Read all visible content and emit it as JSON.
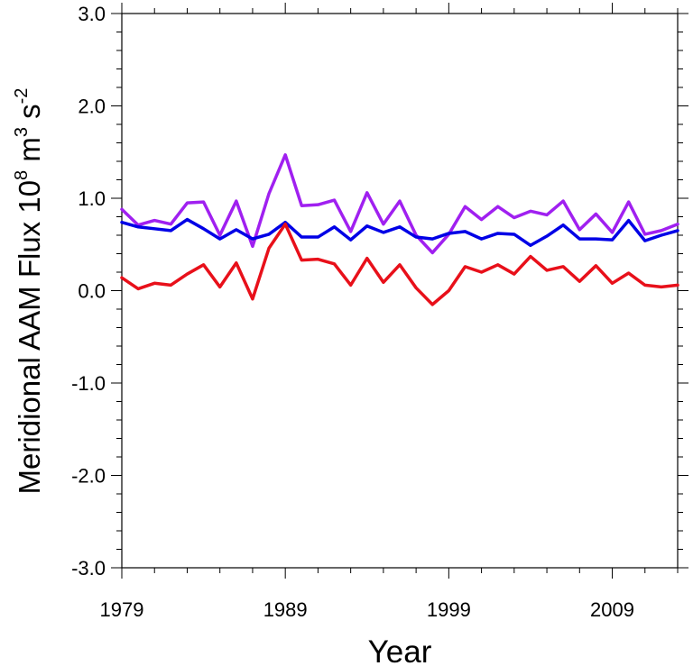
{
  "chart_data": {
    "type": "line",
    "xlabel": "Year",
    "ylabel_main": "Meridional AAM Flux 10",
    "ylabel_exp1": "8",
    "ylabel_mid": " m",
    "ylabel_exp2": "3",
    "ylabel_mid2": " s",
    "ylabel_exp3": "-2",
    "xlim": [
      1979,
      2013
    ],
    "ylim": [
      -3.0,
      3.0
    ],
    "x_major_ticks": [
      1979,
      1989,
      1999,
      2009
    ],
    "x_tick_labels": [
      "1979",
      "1989",
      "1999",
      "2009"
    ],
    "y_major_ticks": [
      -3.0,
      -2.0,
      -1.0,
      0.0,
      1.0,
      2.0,
      3.0
    ],
    "y_tick_labels": [
      "-3.0",
      "-2.0",
      "-1.0",
      "0.0",
      "1.0",
      "2.0",
      "3.0"
    ],
    "grid": false,
    "x": [
      1979,
      1980,
      1981,
      1982,
      1983,
      1984,
      1985,
      1986,
      1987,
      1988,
      1989,
      1990,
      1991,
      1992,
      1993,
      1994,
      1995,
      1996,
      1997,
      1998,
      1999,
      2000,
      2001,
      2002,
      2003,
      2004,
      2005,
      2006,
      2007,
      2008,
      2009,
      2010,
      2011,
      2012,
      2013
    ],
    "series": [
      {
        "color": "#a020f0",
        "values": [
          0.88,
          0.71,
          0.76,
          0.72,
          0.95,
          0.96,
          0.6,
          0.97,
          0.48,
          1.05,
          1.47,
          0.92,
          0.93,
          0.98,
          0.64,
          1.06,
          0.72,
          0.97,
          0.6,
          0.41,
          0.61,
          0.91,
          0.77,
          0.91,
          0.79,
          0.86,
          0.82,
          0.97,
          0.66,
          0.83,
          0.63,
          0.96,
          0.61,
          0.65,
          0.72
        ]
      },
      {
        "color": "#0000e6",
        "values": [
          0.74,
          0.69,
          0.67,
          0.65,
          0.77,
          0.67,
          0.56,
          0.66,
          0.56,
          0.61,
          0.74,
          0.58,
          0.58,
          0.69,
          0.55,
          0.7,
          0.63,
          0.69,
          0.58,
          0.56,
          0.62,
          0.64,
          0.56,
          0.62,
          0.61,
          0.49,
          0.59,
          0.71,
          0.56,
          0.56,
          0.55,
          0.76,
          0.54,
          0.6,
          0.65
        ]
      },
      {
        "color": "#e8101a",
        "values": [
          0.14,
          0.02,
          0.08,
          0.06,
          0.18,
          0.28,
          0.04,
          0.3,
          -0.09,
          0.46,
          0.72,
          0.33,
          0.34,
          0.29,
          0.06,
          0.35,
          0.09,
          0.28,
          0.03,
          -0.15,
          0.0,
          0.26,
          0.2,
          0.28,
          0.18,
          0.37,
          0.22,
          0.26,
          0.1,
          0.27,
          0.08,
          0.19,
          0.06,
          0.04,
          0.06
        ]
      }
    ]
  }
}
